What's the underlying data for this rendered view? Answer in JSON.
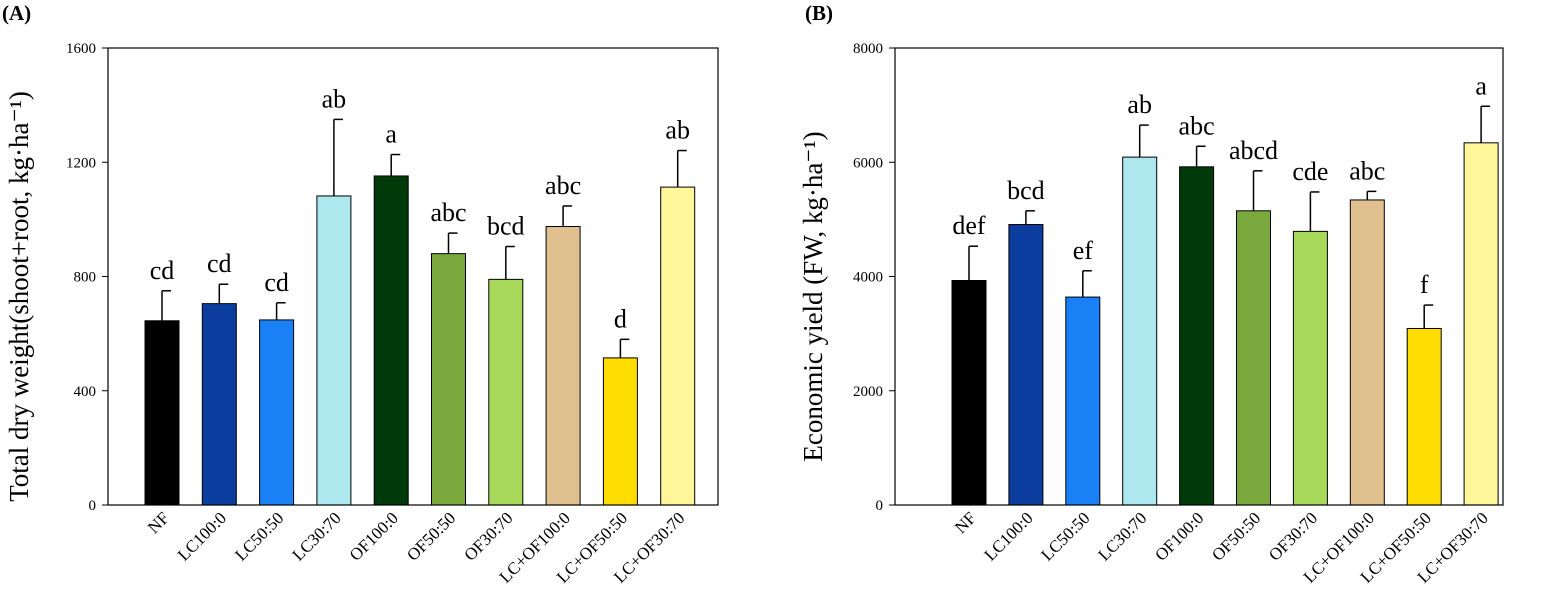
{
  "chart_data": [
    {
      "type": "bar",
      "panel": "(A)",
      "y_label": "Total dry weight(shoot+root, kg·ha⁻¹)",
      "categories": [
        "NF",
        "LC100:0",
        "LC50:50",
        "LC30:70",
        "OF100:0",
        "OF50:50",
        "OF30:70",
        "LC+OF100:0",
        "LC+OF50:50",
        "LC+OF30:70"
      ],
      "values": [
        645,
        705,
        648,
        1082,
        1152,
        880,
        790,
        975,
        515,
        1113
      ],
      "errors": [
        105,
        68,
        60,
        268,
        75,
        72,
        115,
        72,
        65,
        128
      ],
      "letters": [
        "cd",
        "cd",
        "cd",
        "ab",
        "a",
        "abc",
        "bcd",
        "abc",
        "d",
        "ab"
      ],
      "colors": [
        "#000000",
        "#0a3d9e",
        "#1a80f5",
        "#aee8ef",
        "#003a0a",
        "#7aa83c",
        "#a8d95a",
        "#dfc08e",
        "#ffdd00",
        "#fff69a"
      ],
      "ylim": [
        0,
        1600
      ],
      "yticks": [
        0,
        400,
        800,
        1200,
        1600
      ]
    },
    {
      "type": "bar",
      "panel": "(B)",
      "y_label": "Economic yield (FW, kg·ha⁻¹)",
      "categories": [
        "NF",
        "LC100:0",
        "LC50:50",
        "LC30:70",
        "OF100:0",
        "OF50:50",
        "OF30:70",
        "LC+OF100:0",
        "LC+OF50:50",
        "LC+OF30:70"
      ],
      "values": [
        3930,
        4910,
        3640,
        6090,
        5920,
        5150,
        4790,
        5340,
        3090,
        6340
      ],
      "errors": [
        600,
        240,
        460,
        560,
        360,
        700,
        690,
        150,
        410,
        640
      ],
      "letters": [
        "def",
        "bcd",
        "ef",
        "ab",
        "abc",
        "abcd",
        "cde",
        "abc",
        "f",
        "a"
      ],
      "colors": [
        "#000000",
        "#0a3d9e",
        "#1a80f5",
        "#aee8ef",
        "#003a0a",
        "#7aa83c",
        "#a8d95a",
        "#dfc08e",
        "#ffdd00",
        "#fff69a"
      ],
      "ylim": [
        0,
        8000
      ],
      "yticks": [
        0,
        2000,
        4000,
        6000,
        8000
      ]
    }
  ]
}
